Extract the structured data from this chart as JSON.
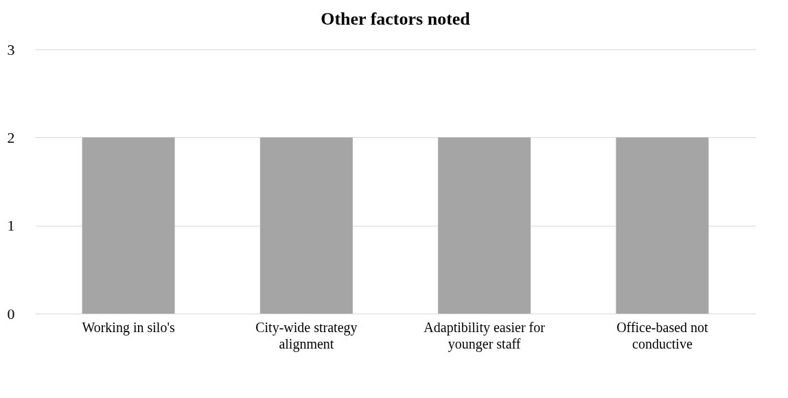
{
  "chart_data": {
    "type": "bar",
    "title": "Other factors noted",
    "categories": [
      "Working  in silo's",
      "City-wide strategy alignment",
      "Adaptibility easier for younger staff",
      "Office-based not conductive"
    ],
    "values": [
      2,
      2,
      2,
      2
    ],
    "color": "#a5a5a5",
    "ylim": [
      0,
      3
    ],
    "yticks": [
      0,
      1,
      2,
      3
    ],
    "grid": "y"
  }
}
